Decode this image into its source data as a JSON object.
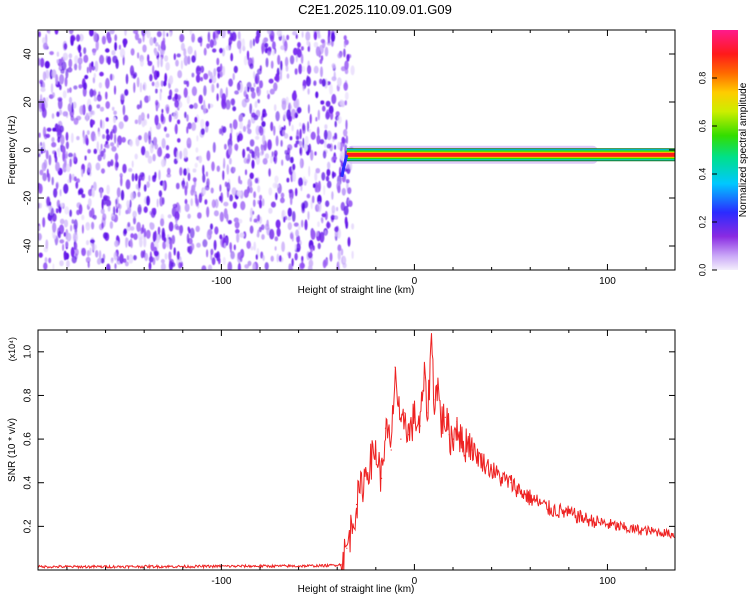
{
  "title": "C2E1.2025.110.09.01.G09",
  "colors": {
    "snr_line": "#ee2222",
    "spectrogram_noise": "#7a2cf0",
    "spectrogram_trace_core": "#ff1a1a",
    "axis": "#000000"
  },
  "colorbar": {
    "label": "Normalized spectral amplitude",
    "ticks": [
      "0.0",
      "0.2",
      "0.4",
      "0.6",
      "0.8"
    ],
    "range": [
      0,
      1
    ],
    "colormap": "rainbow (purple-blue-cyan-green-yellow-red-magenta)"
  },
  "chart_data": [
    {
      "type": "heatmap",
      "name": "spectrogram",
      "xlabel": "Height of straight line (km)",
      "ylabel": "Frequency (Hz)",
      "xlim": [
        -195,
        135
      ],
      "ylim": [
        -50,
        50
      ],
      "x_ticks": [
        "-100",
        "0",
        "100"
      ],
      "x_tick_values": [
        -100,
        0,
        100
      ],
      "y_ticks": [
        "40",
        "20",
        "0",
        "-20",
        "-40"
      ],
      "y_tick_values": [
        40,
        20,
        0,
        -20,
        -40
      ],
      "noise_region_x": [
        -195,
        -35
      ],
      "trace": {
        "x_start": -35,
        "x_end": 135,
        "frequency": -2,
        "peak_amplitude": 1.0
      }
    },
    {
      "type": "line",
      "name": "snr",
      "xlabel": "Height of straight line (km)",
      "ylabel": "SNR (10 * v/v)",
      "y_multiplier_label": "(x10⁴)",
      "xlim": [
        -195,
        135
      ],
      "ylim": [
        0,
        1.1
      ],
      "x_ticks": [
        "-100",
        "0",
        "100"
      ],
      "x_tick_values": [
        -100,
        0,
        100
      ],
      "y_ticks": [
        "0.2",
        "0.4",
        "0.6",
        "0.8",
        "1.0"
      ],
      "y_tick_values": [
        0.2,
        0.4,
        0.6,
        0.8,
        1.0
      ],
      "grid": false,
      "series": [
        {
          "x": [
            -195,
            -180,
            -160,
            -140,
            -120,
            -100,
            -80,
            -60,
            -45,
            -38,
            -35,
            -30,
            -25,
            -20,
            -17,
            -15,
            -12,
            -10,
            -7,
            -5,
            -3,
            0,
            3,
            5,
            7,
            9,
            10,
            12,
            14,
            16,
            18,
            20,
            22,
            25,
            28,
            30,
            35,
            40,
            45,
            50,
            55,
            60,
            70,
            80,
            90,
            100,
            110,
            120,
            130,
            135
          ],
          "y": [
            0.015,
            0.015,
            0.015,
            0.016,
            0.016,
            0.017,
            0.018,
            0.018,
            0.02,
            0.025,
            0.1,
            0.3,
            0.45,
            0.55,
            0.42,
            0.65,
            0.55,
            0.93,
            0.6,
            0.72,
            0.62,
            0.7,
            0.66,
            0.88,
            0.72,
            1.1,
            0.78,
            0.85,
            0.68,
            0.7,
            0.62,
            0.6,
            0.68,
            0.56,
            0.6,
            0.55,
            0.5,
            0.46,
            0.42,
            0.4,
            0.36,
            0.33,
            0.28,
            0.26,
            0.23,
            0.21,
            0.19,
            0.18,
            0.17,
            0.16
          ]
        }
      ]
    }
  ]
}
